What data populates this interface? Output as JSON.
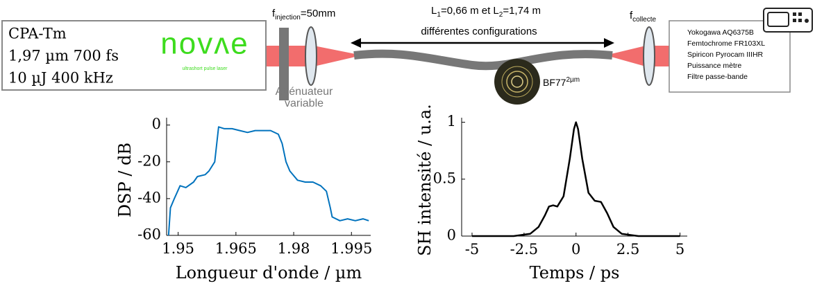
{
  "diagram": {
    "laser": {
      "lines": [
        "CPA-Tm",
        "1,97 µm 700 fs",
        "10 µJ 400 kHz"
      ],
      "logo": "novʌe",
      "tagline": "ultrashort pulse laser"
    },
    "injection": {
      "symbol": "f",
      "sub": "injection",
      "value": "=50mm"
    },
    "lengths": {
      "l1": "L",
      "l1_sub": "1",
      "l1_value": "=0,66 m et ",
      "l2": "L",
      "l2_sub": "2",
      "l2_value": "=1,74 m"
    },
    "configurations": "différentes configurations",
    "attenuator": [
      "Atténuateur",
      "variable"
    ],
    "fiber": {
      "name": "BF77",
      "sup": "2µm"
    },
    "collection": {
      "symbol": "f",
      "sub": "collecte"
    },
    "instruments": [
      "Yokogawa AQ6375B",
      "Femtochrome FR103XL",
      "Spiricon Pyrocam IIIHR",
      "Puissance mètre",
      "Filtre passe-bande"
    ]
  },
  "chart_data": [
    {
      "type": "line",
      "xlabel": "Longueur d'onde / µm",
      "ylabel": "DSP / dB",
      "x": [
        1.9475,
        1.948,
        1.949,
        1.9505,
        1.952,
        1.954,
        1.955,
        1.957,
        1.958,
        1.9595,
        1.9605,
        1.962,
        1.964,
        1.966,
        1.968,
        1.97,
        1.972,
        1.974,
        1.976,
        1.977,
        1.978,
        1.979,
        1.981,
        1.983,
        1.985,
        1.987,
        1.9885,
        1.9895,
        1.99,
        1.992,
        1.994,
        1.996,
        1.998,
        1.9995
      ],
      "series": [
        {
          "color": "#0072bd",
          "values": [
            -60,
            -45,
            -40,
            -33,
            -34,
            -31,
            -28,
            -27,
            -25,
            -20,
            -1,
            -2,
            -2,
            -3,
            -4,
            -3,
            -3,
            -3,
            -5,
            -10,
            -20,
            -25,
            -30,
            -31,
            -31,
            -33,
            -36,
            -45,
            -50,
            -52,
            -51,
            -52,
            -51,
            -52
          ]
        }
      ],
      "xlim": [
        1.947,
        2.0
      ],
      "ylim": [
        -60,
        4
      ],
      "xticks": [
        1.95,
        1.965,
        1.98,
        1.995
      ],
      "yticks": [
        -60,
        -40,
        -20,
        0
      ]
    },
    {
      "type": "line",
      "xlabel": "Temps / ps",
      "ylabel": "SH intensité / u.a.",
      "x": [
        -5,
        -3,
        -2.2,
        -1.8,
        -1.5,
        -1.3,
        -1.1,
        -0.9,
        -0.6,
        -0.3,
        -0.1,
        0,
        0.1,
        0.3,
        0.6,
        0.9,
        1.2,
        1.5,
        1.8,
        2.2,
        3,
        5
      ],
      "series": [
        {
          "color": "#000000",
          "values": [
            0,
            0,
            0.02,
            0.08,
            0.18,
            0.26,
            0.27,
            0.26,
            0.35,
            0.68,
            0.94,
            1,
            0.94,
            0.68,
            0.38,
            0.31,
            0.3,
            0.2,
            0.08,
            0.02,
            0,
            0
          ]
        }
      ],
      "xlim": [
        -5.5,
        5.35
      ],
      "ylim": [
        0,
        1.04
      ],
      "xticks": [
        -5,
        -2.5,
        0,
        2.5,
        5
      ],
      "yticks": [
        0,
        0.5,
        1
      ]
    }
  ]
}
